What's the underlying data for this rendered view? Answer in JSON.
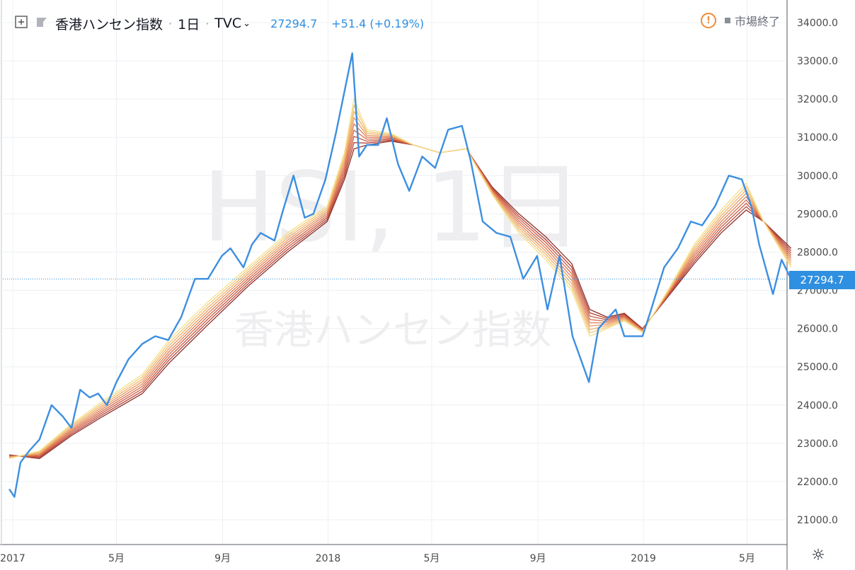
{
  "header": {
    "symbol_name": "香港ハンセン指数",
    "interval": "1日",
    "source": "TVC",
    "last_value": "27294.7",
    "change": "+51.4 (+0.19%)"
  },
  "market_status": "市場終了",
  "watermark": {
    "main": "HSI, 1日",
    "sub": "香港ハンセン指数"
  },
  "price_tag": "27294.7",
  "colors": {
    "price_line": "#3d8fe0",
    "ribbon": [
      "#f3e08a",
      "#f2c97a",
      "#f0b06c",
      "#e99860",
      "#e07f55",
      "#d66a4b",
      "#c85842",
      "#b44538",
      "#8f2f2a"
    ],
    "grid": "#eef0f3",
    "axis_text": "#4a4a4a"
  },
  "chart_data": {
    "type": "line",
    "title": "香港ハンセン指数",
    "xlabel": "",
    "ylabel": "",
    "ylim": [
      20500,
      34500
    ],
    "x_ticks": [
      {
        "label": "2017",
        "date": "2017-01-01"
      },
      {
        "label": "5月",
        "date": "2017-05-01"
      },
      {
        "label": "9月",
        "date": "2017-09-01"
      },
      {
        "label": "2018",
        "date": "2018-01-01"
      },
      {
        "label": "5月",
        "date": "2018-05-01"
      },
      {
        "label": "9月",
        "date": "2018-09-01"
      },
      {
        "label": "2019",
        "date": "2019-01-01"
      },
      {
        "label": "5月",
        "date": "2019-05-01"
      }
    ],
    "y_ticks": [
      21000,
      22000,
      23000,
      24000,
      25000,
      26000,
      27000,
      28000,
      29000,
      30000,
      31000,
      32000,
      33000,
      34000
    ],
    "y_tick_labels": [
      "21000.0",
      "22000.0",
      "23000.0",
      "24000.0",
      "25000.0",
      "26000.0",
      "27000.0",
      "28000.0",
      "29000.0",
      "30000.0",
      "31000.0",
      "32000.0",
      "33000.0",
      "34000.0"
    ],
    "grid": true,
    "series": [
      {
        "type": "price",
        "points": [
          [
            "2016-12-28",
            21800
          ],
          [
            "2017-01-03",
            21600
          ],
          [
            "2017-01-10",
            22500
          ],
          [
            "2017-01-20",
            22800
          ],
          [
            "2017-02-01",
            23100
          ],
          [
            "2017-02-15",
            24000
          ],
          [
            "2017-02-28",
            23700
          ],
          [
            "2017-03-10",
            23400
          ],
          [
            "2017-03-20",
            24400
          ],
          [
            "2017-03-31",
            24200
          ],
          [
            "2017-04-10",
            24300
          ],
          [
            "2017-04-20",
            24000
          ],
          [
            "2017-05-01",
            24600
          ],
          [
            "2017-05-15",
            25200
          ],
          [
            "2017-05-31",
            25600
          ],
          [
            "2017-06-15",
            25800
          ],
          [
            "2017-06-30",
            25700
          ],
          [
            "2017-07-15",
            26300
          ],
          [
            "2017-07-31",
            27300
          ],
          [
            "2017-08-15",
            27300
          ],
          [
            "2017-08-31",
            27900
          ],
          [
            "2017-09-10",
            28100
          ],
          [
            "2017-09-25",
            27600
          ],
          [
            "2017-10-05",
            28200
          ],
          [
            "2017-10-15",
            28500
          ],
          [
            "2017-10-31",
            28300
          ],
          [
            "2017-11-10",
            29100
          ],
          [
            "2017-11-22",
            30000
          ],
          [
            "2017-12-05",
            28900
          ],
          [
            "2017-12-15",
            29000
          ],
          [
            "2017-12-29",
            29900
          ],
          [
            "2018-01-10",
            31100
          ],
          [
            "2018-01-20",
            32200
          ],
          [
            "2018-01-29",
            33200
          ],
          [
            "2018-02-06",
            30500
          ],
          [
            "2018-02-15",
            30800
          ],
          [
            "2018-02-28",
            30800
          ],
          [
            "2018-03-10",
            31500
          ],
          [
            "2018-03-23",
            30300
          ],
          [
            "2018-04-05",
            29600
          ],
          [
            "2018-04-20",
            30500
          ],
          [
            "2018-05-05",
            30200
          ],
          [
            "2018-05-20",
            31200
          ],
          [
            "2018-06-05",
            31300
          ],
          [
            "2018-06-15",
            30400
          ],
          [
            "2018-06-29",
            28800
          ],
          [
            "2018-07-15",
            28500
          ],
          [
            "2018-07-31",
            28400
          ],
          [
            "2018-08-15",
            27300
          ],
          [
            "2018-08-31",
            27900
          ],
          [
            "2018-09-12",
            26500
          ],
          [
            "2018-09-26",
            27900
          ],
          [
            "2018-10-11",
            25800
          ],
          [
            "2018-10-30",
            24600
          ],
          [
            "2018-11-10",
            26000
          ],
          [
            "2018-11-30",
            26500
          ],
          [
            "2018-12-10",
            25800
          ],
          [
            "2018-12-31",
            25800
          ],
          [
            "2019-01-10",
            26500
          ],
          [
            "2019-01-25",
            27600
          ],
          [
            "2019-02-10",
            28100
          ],
          [
            "2019-02-25",
            28800
          ],
          [
            "2019-03-10",
            28700
          ],
          [
            "2019-03-25",
            29200
          ],
          [
            "2019-04-10",
            30000
          ],
          [
            "2019-04-25",
            29900
          ],
          [
            "2019-05-06",
            29200
          ],
          [
            "2019-05-15",
            28200
          ],
          [
            "2019-05-31",
            26900
          ],
          [
            "2019-06-10",
            27800
          ],
          [
            "2019-06-21",
            27294.7
          ]
        ]
      },
      {
        "type": "ema-fast",
        "points": [
          [
            "2016-12-28",
            22600
          ],
          [
            "2017-02-01",
            22800
          ],
          [
            "2017-03-10",
            23500
          ],
          [
            "2017-04-15",
            24100
          ],
          [
            "2017-05-31",
            24800
          ],
          [
            "2017-07-01",
            25700
          ],
          [
            "2017-08-15",
            26700
          ],
          [
            "2017-09-30",
            27600
          ],
          [
            "2017-11-15",
            28500
          ],
          [
            "2017-12-31",
            29200
          ],
          [
            "2018-01-20",
            30600
          ],
          [
            "2018-01-31",
            32000
          ],
          [
            "2018-02-15",
            31200
          ],
          [
            "2018-03-15",
            31100
          ],
          [
            "2018-04-10",
            30800
          ],
          [
            "2018-05-10",
            30600
          ],
          [
            "2018-06-10",
            30700
          ],
          [
            "2018-07-10",
            29500
          ],
          [
            "2018-08-10",
            28500
          ],
          [
            "2018-09-10",
            27800
          ],
          [
            "2018-10-10",
            27000
          ],
          [
            "2018-10-31",
            25800
          ],
          [
            "2018-11-20",
            26000
          ],
          [
            "2018-12-10",
            26200
          ],
          [
            "2018-12-31",
            25900
          ],
          [
            "2019-02-01",
            27100
          ],
          [
            "2019-03-01",
            28200
          ],
          [
            "2019-04-01",
            29100
          ],
          [
            "2019-04-30",
            29800
          ],
          [
            "2019-05-20",
            28800
          ],
          [
            "2019-06-21",
            27600
          ]
        ]
      },
      {
        "type": "ema-slow",
        "points": [
          [
            "2016-12-28",
            22700
          ],
          [
            "2017-02-01",
            22600
          ],
          [
            "2017-03-10",
            23200
          ],
          [
            "2017-04-15",
            23700
          ],
          [
            "2017-05-31",
            24300
          ],
          [
            "2017-07-01",
            25100
          ],
          [
            "2017-08-15",
            26100
          ],
          [
            "2017-09-30",
            27100
          ],
          [
            "2017-11-15",
            28000
          ],
          [
            "2017-12-31",
            28800
          ],
          [
            "2018-01-20",
            29900
          ],
          [
            "2018-01-31",
            30700
          ],
          [
            "2018-02-15",
            30800
          ],
          [
            "2018-03-15",
            30900
          ],
          [
            "2018-04-10",
            30800
          ],
          [
            "2018-05-10",
            30600
          ],
          [
            "2018-06-10",
            30700
          ],
          [
            "2018-07-10",
            29700
          ],
          [
            "2018-08-10",
            29000
          ],
          [
            "2018-09-10",
            28400
          ],
          [
            "2018-10-10",
            27700
          ],
          [
            "2018-10-31",
            26500
          ],
          [
            "2018-11-20",
            26300
          ],
          [
            "2018-12-10",
            26400
          ],
          [
            "2018-12-31",
            26000
          ],
          [
            "2019-02-01",
            26900
          ],
          [
            "2019-03-01",
            27700
          ],
          [
            "2019-04-01",
            28500
          ],
          [
            "2019-04-30",
            29100
          ],
          [
            "2019-05-20",
            28800
          ],
          [
            "2019-06-21",
            28100
          ]
        ]
      }
    ]
  }
}
